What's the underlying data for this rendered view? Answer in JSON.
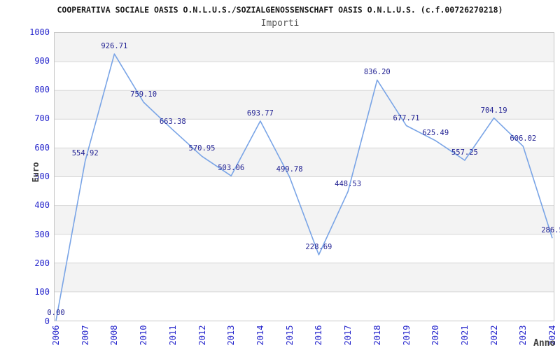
{
  "chart_data": {
    "type": "line",
    "title": "COOPERATIVA SOCIALE OASIS O.N.L.U.S./SOZIALGENOSSENSCHAFT OASIS O.N.L.U.S. (c.f.00726270218)",
    "subtitle": "Importi",
    "xlabel": "Anno",
    "ylabel": "Euro",
    "categories": [
      "2006",
      "2007",
      "2008",
      "2010",
      "2011",
      "2012",
      "2013",
      "2014",
      "2015",
      "2016",
      "2017",
      "2018",
      "2019",
      "2020",
      "2021",
      "2022",
      "2023",
      "2024"
    ],
    "values": [
      0.0,
      554.92,
      926.71,
      759.1,
      663.38,
      570.95,
      503.06,
      693.77,
      499.78,
      228.69,
      448.53,
      836.2,
      677.71,
      625.49,
      557.25,
      704.19,
      606.02,
      286.5
    ],
    "point_labels": [
      "0.00",
      "554.92",
      "926.71",
      "759.10",
      "663.38",
      "570.95",
      "503.06",
      "693.77",
      "499.78",
      "228.69",
      "448.53",
      "836.20",
      "677.71",
      "625.49",
      "557.25",
      "704.19",
      "606.02",
      "286.5"
    ],
    "yticks": [
      0,
      100,
      200,
      300,
      400,
      500,
      600,
      700,
      800,
      900,
      1000
    ],
    "ylim": [
      0,
      1000
    ],
    "grid": "horizontal-gridlines-with-alternating-bands",
    "legend": "none",
    "colors": {
      "line": "#79a4e6",
      "tick_labels": "#2626cc",
      "point_labels": "#222293",
      "band": "#f3f3f3",
      "gridline": "#d7d7d7",
      "plot_border": "#c6c6c6",
      "title": "#1a1a1a",
      "subtitle": "#5a5a5a",
      "axis_titles": "#3d3d3d",
      "background": "#ffffff"
    }
  }
}
